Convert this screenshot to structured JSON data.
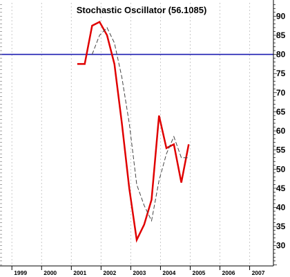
{
  "chart_data": {
    "type": "line",
    "title": "Stochastic Oscillator (56.1085)",
    "xlabel": "",
    "ylabel": "",
    "x_ticks": [
      "1999",
      "2000",
      "2001",
      "2002",
      "2003",
      "2004",
      "2005",
      "2006",
      "2007"
    ],
    "y_ticks": [
      30,
      35,
      40,
      45,
      50,
      55,
      60,
      65,
      70,
      75,
      80,
      85,
      90
    ],
    "xlim": [
      1998.6,
      2007.8
    ],
    "ylim": [
      24.7,
      93.5
    ],
    "y_axis_position": "right",
    "grid": "vertical-dashed",
    "reference_line": {
      "value": 80,
      "color": "#1a1ab0"
    },
    "series": [
      {
        "color": "#e00000",
        "style": "solid",
        "points": [
          [
            2001.2,
            77.5
          ],
          [
            2001.45,
            77.5
          ],
          [
            2001.7,
            87.5
          ],
          [
            2001.95,
            88.5
          ],
          [
            2002.2,
            85
          ],
          [
            2002.45,
            77.5
          ],
          [
            2002.7,
            62
          ],
          [
            2002.95,
            45
          ],
          [
            2003.2,
            31.5
          ],
          [
            2003.45,
            35.5
          ],
          [
            2003.7,
            42
          ],
          [
            2003.95,
            64
          ],
          [
            2004.2,
            55.5
          ],
          [
            2004.45,
            56.5
          ],
          [
            2004.7,
            46.5
          ],
          [
            2004.95,
            56.5
          ]
        ]
      },
      {
        "color": "#444444",
        "style": "dashed",
        "points": [
          [
            2001.7,
            80
          ],
          [
            2001.95,
            85
          ],
          [
            2002.2,
            87
          ],
          [
            2002.45,
            83
          ],
          [
            2002.7,
            74
          ],
          [
            2002.95,
            62
          ],
          [
            2003.2,
            46
          ],
          [
            2003.45,
            40.5
          ],
          [
            2003.7,
            36.5
          ],
          [
            2003.95,
            47
          ],
          [
            2004.2,
            54
          ],
          [
            2004.45,
            58.5
          ],
          [
            2004.7,
            53
          ],
          [
            2004.95,
            53
          ]
        ]
      }
    ]
  }
}
